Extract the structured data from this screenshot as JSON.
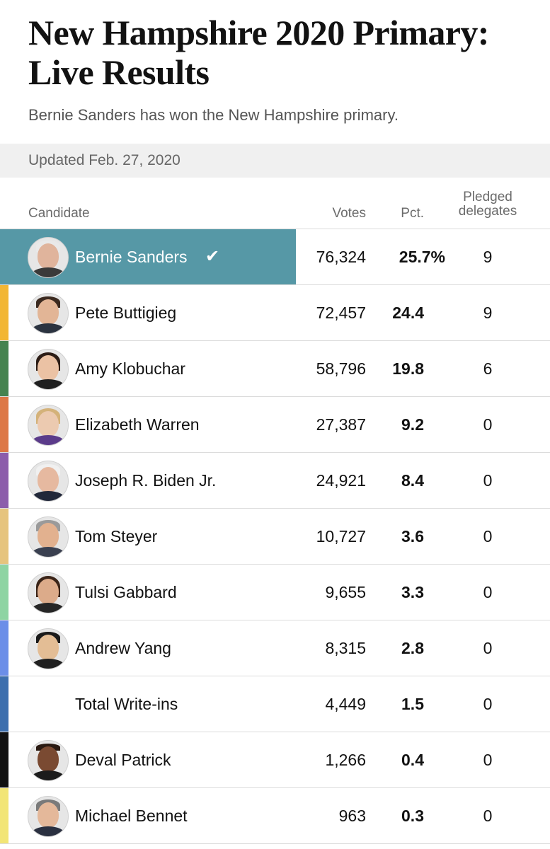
{
  "header": {
    "title_line1": "New Hampshire 2020 Primary:",
    "title_line2": "Live Results",
    "subtitle": "Bernie Sanders has won the New Hampshire primary."
  },
  "updated": "Updated Feb. 27, 2020",
  "columns": {
    "candidate": "Candidate",
    "votes": "Votes",
    "pct": "Pct.",
    "delegates_line1": "Pledged",
    "delegates_line2": "delegates"
  },
  "colors": {
    "winner_highlight": "#5698a6",
    "sanders": "#5698a6",
    "buttigieg": "#f2b634",
    "klobuchar": "#45834f",
    "warren": "#dd7846",
    "biden": "#8c5dab",
    "steyer": "#e6c47e",
    "gabbard": "#8ed4a3",
    "yang": "#6b8ee8",
    "writeins": "#3d6fae",
    "patrick": "#111111",
    "bennet": "#f2e576"
  },
  "rows": [
    {
      "name": "Bernie Sanders",
      "votes": "76,324",
      "pct": "25.7%",
      "delegates": "9",
      "winner": true,
      "icon": "candidate-photo-sanders"
    },
    {
      "name": "Pete Buttigieg",
      "votes": "72,457",
      "pct": "24.4",
      "delegates": "9",
      "icon": "candidate-photo-buttigieg"
    },
    {
      "name": "Amy Klobuchar",
      "votes": "58,796",
      "pct": "19.8",
      "delegates": "6",
      "icon": "candidate-photo-klobuchar"
    },
    {
      "name": "Elizabeth Warren",
      "votes": "27,387",
      "pct": "9.2",
      "delegates": "0",
      "icon": "candidate-photo-warren"
    },
    {
      "name": "Joseph R. Biden Jr.",
      "votes": "24,921",
      "pct": "8.4",
      "delegates": "0",
      "icon": "candidate-photo-biden"
    },
    {
      "name": "Tom Steyer",
      "votes": "10,727",
      "pct": "3.6",
      "delegates": "0",
      "icon": "candidate-photo-steyer"
    },
    {
      "name": "Tulsi Gabbard",
      "votes": "9,655",
      "pct": "3.3",
      "delegates": "0",
      "icon": "candidate-photo-gabbard"
    },
    {
      "name": "Andrew Yang",
      "votes": "8,315",
      "pct": "2.8",
      "delegates": "0",
      "icon": "candidate-photo-yang"
    },
    {
      "name": "Total Write-ins",
      "votes": "4,449",
      "pct": "1.5",
      "delegates": "0"
    },
    {
      "name": "Deval Patrick",
      "votes": "1,266",
      "pct": "0.4",
      "delegates": "0",
      "icon": "candidate-photo-patrick"
    },
    {
      "name": "Michael Bennet",
      "votes": "963",
      "pct": "0.3",
      "delegates": "0",
      "icon": "candidate-photo-bennet"
    }
  ]
}
